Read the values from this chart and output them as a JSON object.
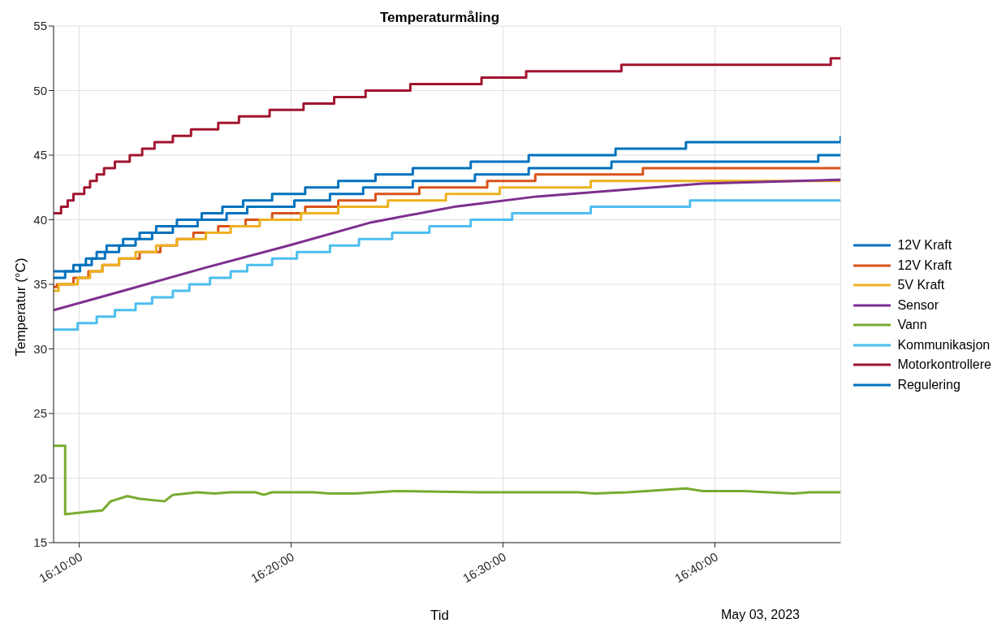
{
  "chart_data": {
    "type": "step",
    "title": "Temperaturmåling",
    "xlabel": "Tid",
    "ylabel": "Temperatur (°C)",
    "annotations": [
      "May 03, 2023"
    ],
    "xlim": [
      16.1465,
      16.7656
    ],
    "xticks": [
      {
        "value": 16.1667,
        "label": "16:10:00"
      },
      {
        "value": 16.3333,
        "label": "16:20:00"
      },
      {
        "value": 16.5,
        "label": "16:30:00"
      },
      {
        "value": 16.6667,
        "label": "16:40:00"
      }
    ],
    "ylim": [
      15,
      55
    ],
    "yticks": [
      15,
      20,
      25,
      30,
      35,
      40,
      45,
      50,
      55
    ],
    "grid": true,
    "legend": "right",
    "marker": "none",
    "line_style": "solid",
    "series": [
      {
        "name": "12V Kraft",
        "color": "#0072bd",
        "x": [
          16.1465,
          16.1621,
          16.1719,
          16.1804,
          16.1882,
          16.2012,
          16.2142,
          16.2272,
          16.2435,
          16.263,
          16.2793,
          16.2956,
          16.3184,
          16.3444,
          16.3704,
          16.3997,
          16.429,
          16.4746,
          16.5202,
          16.5885,
          16.6439,
          16.7656
        ],
        "values": [
          36,
          36.5,
          37,
          37.5,
          38,
          38.5,
          39,
          39.5,
          40,
          40.5,
          41,
          41.5,
          42,
          42.5,
          43,
          43.5,
          44,
          44.5,
          45,
          45.5,
          46,
          46.5
        ]
      },
      {
        "name": "12V Kraft",
        "color": "#d95319",
        "x": [
          16.1465,
          16.1491,
          16.1621,
          16.1739,
          16.1849,
          16.198,
          16.2142,
          16.2305,
          16.2435,
          16.2565,
          16.276,
          16.2975,
          16.3184,
          16.3444,
          16.3704,
          16.3997,
          16.4342,
          16.4876,
          16.5254,
          16.61,
          16.7656
        ],
        "values": [
          34.8,
          35,
          35.5,
          36,
          36.5,
          37,
          37.5,
          38,
          38.5,
          39,
          39.5,
          40,
          40.5,
          41,
          41.5,
          42,
          42.5,
          43,
          43.5,
          44,
          44
        ]
      },
      {
        "name": "5V Kraft",
        "color": "#edb120",
        "x": [
          16.1465,
          16.1504,
          16.1654,
          16.1752,
          16.1849,
          16.198,
          16.211,
          16.2272,
          16.2435,
          16.2663,
          16.2858,
          16.3086,
          16.3411,
          16.3704,
          16.4095,
          16.4551,
          16.4974,
          16.569,
          16.6471,
          16.7656
        ],
        "values": [
          34.5,
          35,
          35.5,
          36,
          36.5,
          37,
          37.5,
          38,
          38.5,
          39,
          39.5,
          40,
          40.5,
          41,
          41.5,
          42,
          42.5,
          43,
          43,
          43
        ]
      },
      {
        "name": "Sensor",
        "type": "line",
        "color": "#7e2f8e",
        "x": [
          16.1465,
          16.2012,
          16.2663,
          16.3314,
          16.3965,
          16.4616,
          16.5267,
          16.5918,
          16.6569,
          16.7656
        ],
        "values": [
          33,
          34.5,
          36.3,
          38,
          39.8,
          41,
          41.8,
          42.3,
          42.8,
          43.1
        ]
      },
      {
        "name": "Vann",
        "type": "line",
        "color": "#77ac30",
        "x": [
          16.1465,
          16.1556,
          16.1556,
          16.1849,
          16.1914,
          16.2045,
          16.2142,
          16.2338,
          16.2403,
          16.2598,
          16.2728,
          16.2858,
          16.3053,
          16.3118,
          16.3184,
          16.3509,
          16.3639,
          16.3835,
          16.416,
          16.4811,
          16.5592,
          16.5723,
          16.5983,
          16.6439,
          16.6569,
          16.6895,
          16.709,
          16.7285,
          16.7415,
          16.7656
        ],
        "values": [
          22.5,
          22.5,
          17.2,
          17.5,
          18.2,
          18.6,
          18.4,
          18.2,
          18.7,
          18.9,
          18.8,
          18.9,
          18.9,
          18.7,
          18.9,
          18.9,
          18.8,
          18.8,
          19,
          18.9,
          18.9,
          18.8,
          18.9,
          19.2,
          19,
          19,
          18.9,
          18.8,
          18.9,
          18.9
        ]
      },
      {
        "name": "Kommunikasjon",
        "color": "#4dbeee",
        "x": [
          16.1465,
          16.1654,
          16.1804,
          16.1947,
          16.211,
          16.224,
          16.2403,
          16.2533,
          16.2695,
          16.2858,
          16.2988,
          16.3184,
          16.3379,
          16.3639,
          16.3867,
          16.4128,
          16.4421,
          16.4746,
          16.5072,
          16.569,
          16.6471,
          16.7656
        ],
        "values": [
          31.5,
          32,
          32.5,
          33,
          33.5,
          34,
          34.5,
          35,
          35.5,
          36,
          36.5,
          37,
          37.5,
          38,
          38.5,
          39,
          39.5,
          40,
          40.5,
          41,
          41.5,
          41.5
        ]
      },
      {
        "name": "Motorkontrollere",
        "color": "#a2142f",
        "x": [
          16.1465,
          16.1524,
          16.1576,
          16.1621,
          16.1706,
          16.1752,
          16.1804,
          16.1862,
          16.1947,
          16.2064,
          16.2162,
          16.2259,
          16.2403,
          16.2546,
          16.276,
          16.2923,
          16.3164,
          16.3431,
          16.3672,
          16.3919,
          16.4271,
          16.4831,
          16.5182,
          16.5931,
          16.7578,
          16.7656
        ],
        "values": [
          40.5,
          41,
          41.5,
          42,
          42.5,
          43,
          43.5,
          44,
          44.5,
          45,
          45.5,
          46,
          46.5,
          47,
          47.5,
          48,
          48.5,
          49,
          49.5,
          50,
          50.5,
          51,
          51.5,
          52,
          52.5,
          52.5
        ]
      },
      {
        "name": "Regulering",
        "color": "#0072bd",
        "x": [
          16.1465,
          16.1556,
          16.1673,
          16.1765,
          16.1869,
          16.198,
          16.211,
          16.224,
          16.2403,
          16.2598,
          16.2826,
          16.2988,
          16.3359,
          16.3639,
          16.39,
          16.429,
          16.4779,
          16.5202,
          16.5853,
          16.748,
          16.7656
        ],
        "values": [
          35.5,
          36,
          36.5,
          37,
          37.5,
          38,
          38.5,
          39,
          39.5,
          40,
          40.5,
          41,
          41.5,
          42,
          42.5,
          43,
          43.5,
          44,
          44.5,
          45,
          45
        ]
      }
    ]
  }
}
